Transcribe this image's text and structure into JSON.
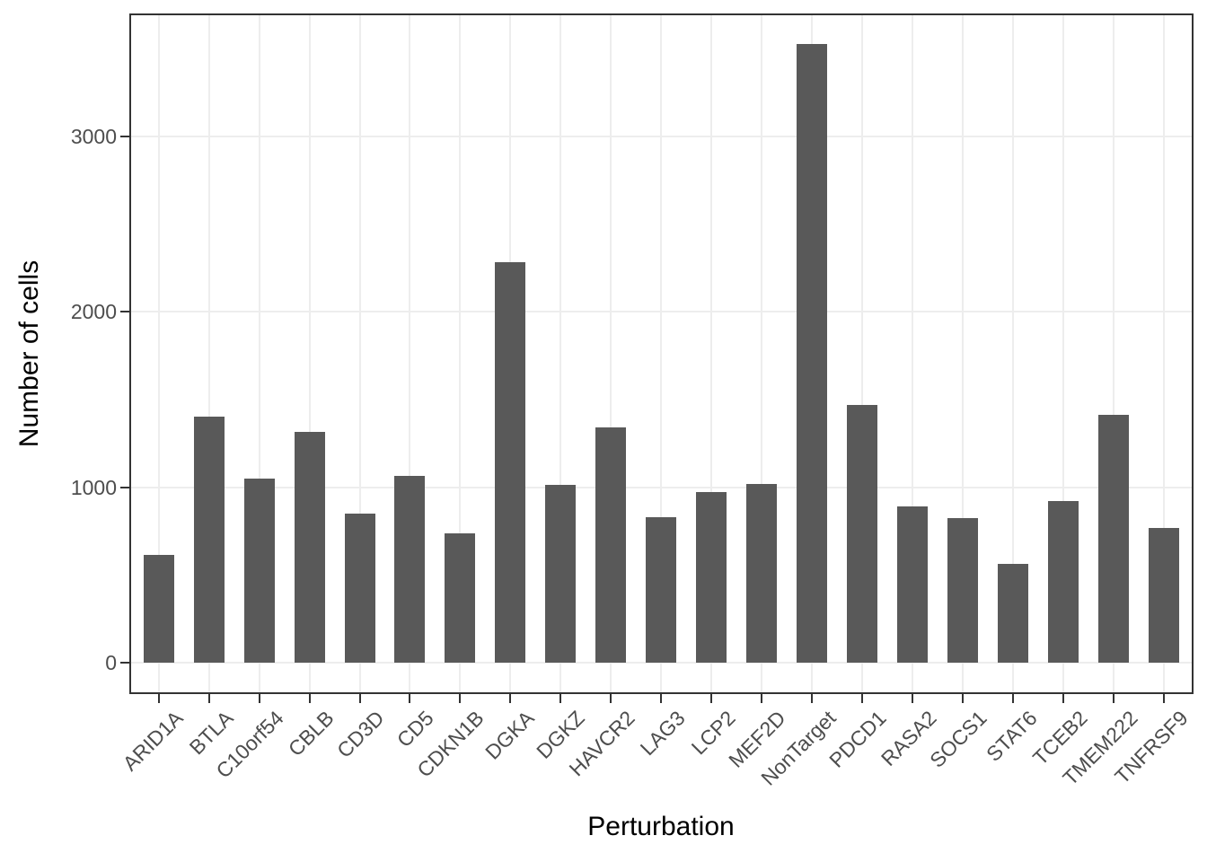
{
  "chart_data": {
    "type": "bar",
    "title": "",
    "xlabel": "Perturbation",
    "ylabel": "Number of cells",
    "categories": [
      "ARID1A",
      "BTLA",
      "C10orf54",
      "CBLB",
      "CD3D",
      "CD5",
      "CDKN1B",
      "DGKA",
      "DGKZ",
      "HAVCR2",
      "LAG3",
      "LCP2",
      "MEF2D",
      "NonTarget",
      "PDCD1",
      "RASA2",
      "SOCS1",
      "STAT6",
      "TCEB2",
      "TMEM222",
      "TNFRSF9"
    ],
    "values": [
      615,
      1404,
      1048,
      1318,
      852,
      1065,
      739,
      2283,
      1014,
      1339,
      830,
      972,
      1021,
      3525,
      1470,
      892,
      827,
      564,
      924,
      1413,
      770
    ],
    "y_ticks": [
      0,
      1000,
      2000,
      3000
    ],
    "ylim": [
      0,
      3700
    ],
    "grid": "major horizontal lines at y ticks, vertical line at each category center",
    "legend_position": "none",
    "colors": {
      "bar_fill": "#595959",
      "gridline": "#ededed",
      "panel_border": "#333333",
      "tick_mark": "#333333",
      "tick_label": "#4d4d4d",
      "axis_title": "#000000",
      "background": "#ffffff"
    }
  }
}
